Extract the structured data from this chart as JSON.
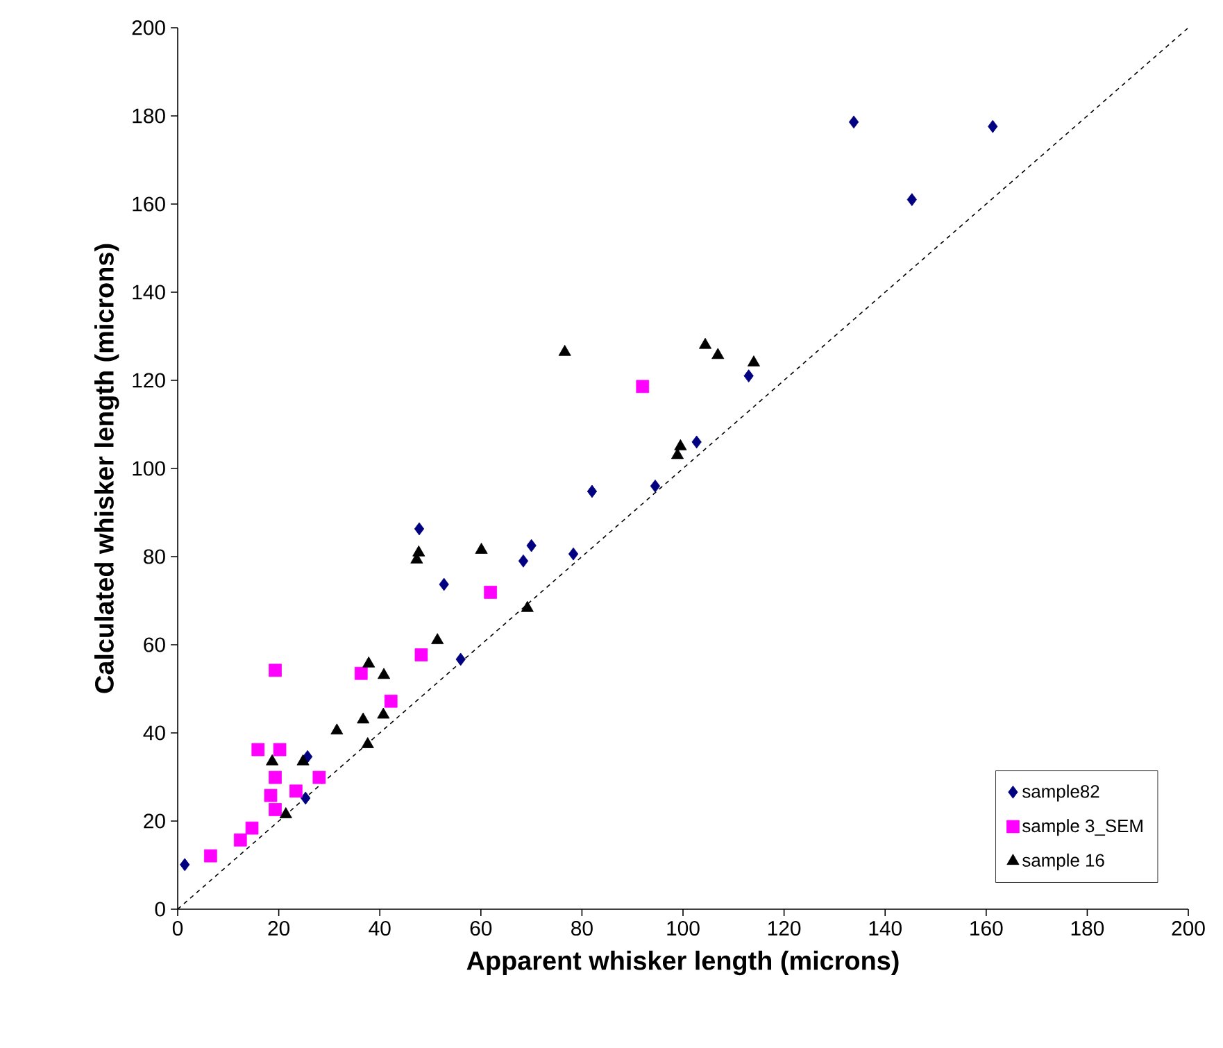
{
  "chart_data": {
    "type": "scatter",
    "xlabel": "Apparent whisker length (microns)",
    "ylabel": "Calculated whisker length (microns)",
    "xlim": [
      0,
      200
    ],
    "ylim": [
      0,
      200
    ],
    "xticks": [
      0,
      20,
      40,
      60,
      80,
      100,
      120,
      140,
      160,
      180,
      200
    ],
    "yticks": [
      0,
      20,
      40,
      60,
      80,
      100,
      120,
      140,
      160,
      180,
      200
    ],
    "legend": "bottom right",
    "series": [
      {
        "name": "sample82",
        "color": "#000080",
        "marker": "diamond",
        "x": [
          1.4,
          25.3,
          25.7,
          47.8,
          52.7,
          56,
          68.4,
          70,
          78.3,
          82,
          94.5,
          102.7,
          113,
          133.8,
          145.3,
          161.3
        ],
        "values": [
          10.1,
          25.2,
          34.6,
          86.3,
          73.7,
          56.7,
          79,
          82.5,
          80.6,
          94.8,
          96,
          106,
          121,
          178.6,
          161,
          177.6
        ]
      },
      {
        "name": "sample 3_SEM",
        "color": "#ff00ff",
        "marker": "square",
        "x": [
          6.5,
          12.4,
          14.7,
          15.9,
          20.2,
          19.3,
          19.3,
          18.4,
          19.3,
          23.4,
          28,
          36.3,
          42.2,
          48.2,
          61.9,
          92
        ],
        "values": [
          12.1,
          15.7,
          18.4,
          36.2,
          36.2,
          54.2,
          29.9,
          25.8,
          22.6,
          26.8,
          29.9,
          53.5,
          47.2,
          57.7,
          71.9,
          118.6
        ]
      },
      {
        "name": "sample 16",
        "color": "#000000",
        "marker": "triangle",
        "x": [
          18.7,
          21.4,
          24.8,
          31.5,
          36.7,
          37.6,
          37.8,
          40.8,
          40.7,
          47.3,
          47.7,
          51.4,
          60.1,
          69.2,
          76.6,
          98.9,
          99.5,
          104.4,
          106.9,
          114
        ],
        "values": [
          33.5,
          21.5,
          33.5,
          40.5,
          43,
          37.4,
          55.7,
          53.1,
          44.1,
          79.3,
          80.9,
          61,
          81.5,
          68.3,
          126.4,
          103,
          105,
          128,
          125.7,
          124
        ]
      },
      {
        "type": "line",
        "color": "#000000",
        "line_style": "dashed",
        "marker": "none",
        "x": [
          0,
          200
        ],
        "values": [
          0,
          200
        ]
      }
    ]
  }
}
